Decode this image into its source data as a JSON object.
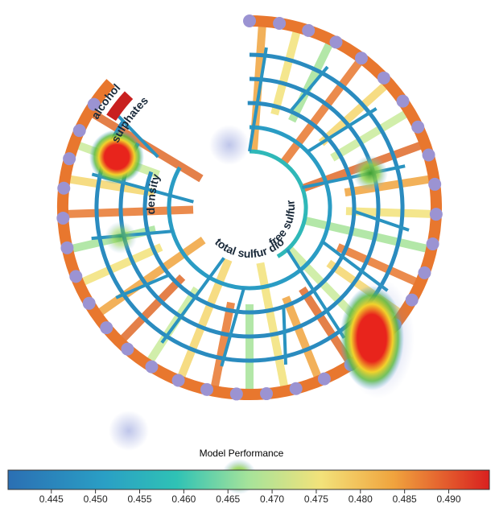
{
  "labels": [
    "alcohol",
    "sulphates",
    "density",
    "total sulfur dioxide",
    "free sulfur"
  ],
  "colorbar": {
    "title": "Model Performance",
    "lim": [
      0.4401,
      0.4946
    ],
    "ticks": [
      0.445,
      {
        "value": 0.45,
        "label": "0.450"
      },
      0.455,
      {
        "value": 0.46,
        "label": "0.460"
      },
      0.465,
      {
        "value": 0.47,
        "label": "0.470"
      },
      0.475,
      {
        "value": 0.48,
        "label": "0.480"
      },
      0.485,
      {
        "value": 0.49,
        "label": "0.490"
      }
    ]
  }
}
